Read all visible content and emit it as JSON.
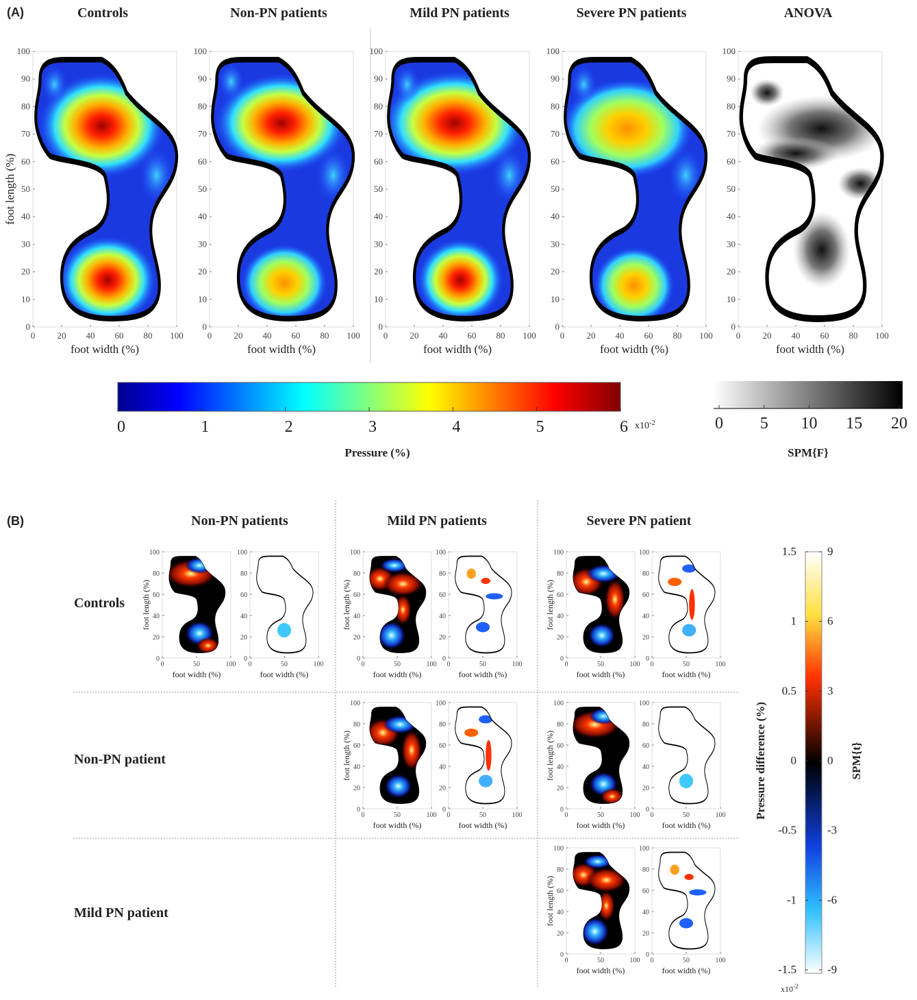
{
  "panel_a": {
    "label": "(A)",
    "titles": [
      "Controls",
      "Non-PN patients",
      "Mild PN patients",
      "Severe PN patients",
      "ANOVA"
    ],
    "y_axis_label": "foot length (%)",
    "x_axis_label": "foot width (%)",
    "xlim": [
      0,
      100
    ],
    "ylim": [
      0,
      100
    ],
    "xticks": [
      0,
      20,
      40,
      60,
      80,
      100
    ],
    "yticks": [
      0,
      10,
      20,
      30,
      40,
      50,
      60,
      70,
      80,
      90,
      100
    ],
    "pressure_colorbar": {
      "ticks": [
        0,
        1,
        2,
        3,
        4,
        5,
        6
      ],
      "multiplier": {
        "base": "x10",
        "exponent": "-2"
      },
      "label": "Pressure (%)"
    },
    "spm_colorbar": {
      "ticks": [
        0,
        5,
        10,
        15,
        20
      ],
      "label": "SPM{F}"
    }
  },
  "panel_b": {
    "label": "(B)",
    "column_titles": [
      "Non-PN patients",
      "Mild PN patients",
      "Severe PN patient"
    ],
    "row_labels": [
      "Controls",
      "Non-PN patient",
      "Mild PN patient"
    ],
    "y_axis_label": "foot length (%)",
    "x_axis_label": "foot width (%)",
    "xlim": [
      0,
      100
    ],
    "ylim": [
      0,
      100
    ],
    "xticks": [
      0,
      50,
      100
    ],
    "yticks": [
      0,
      20,
      40,
      60,
      80,
      100
    ],
    "colorbar": {
      "pressure_ticks": [
        1.5,
        1,
        0.5,
        0,
        -0.5,
        -1,
        -1.5
      ],
      "spm_ticks": [
        9,
        6,
        3,
        0,
        -3,
        -6,
        -9
      ],
      "pressure_label": "Pressure difference (%)",
      "spm_label": "SPM{t}",
      "multiplier": {
        "base": "x10",
        "exponent": "-2"
      }
    }
  }
}
